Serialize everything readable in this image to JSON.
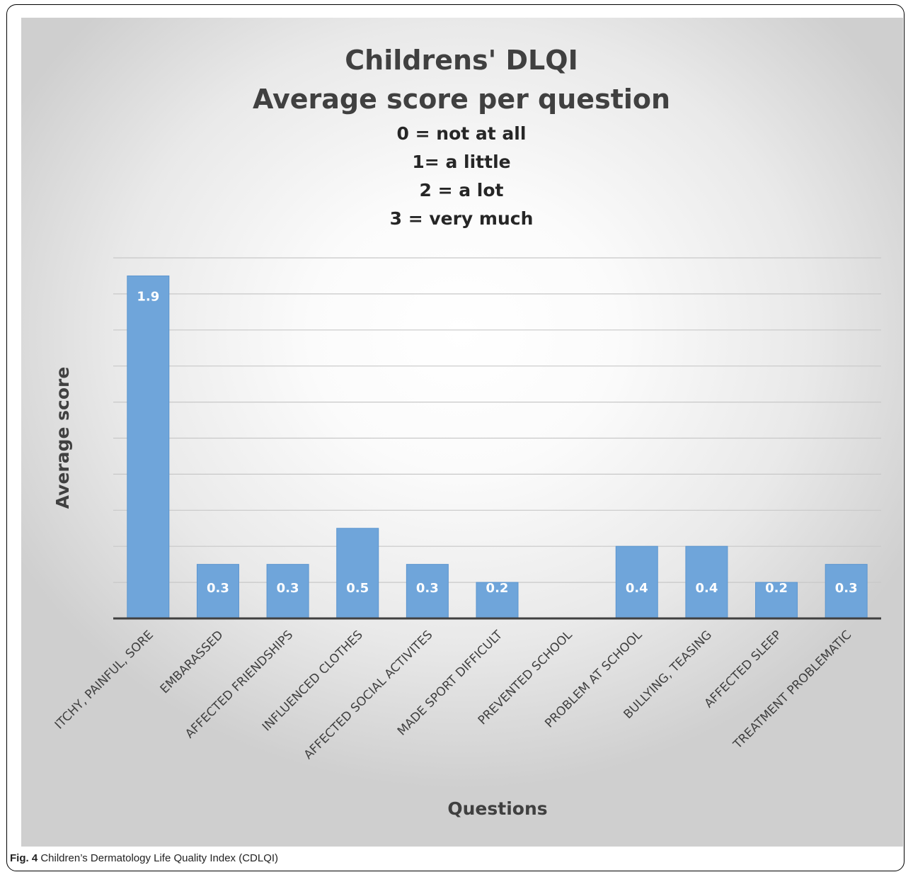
{
  "caption": {
    "label": "Fig. 4",
    "text": "Children’s Dermatology Life Quality Index (CDLQI)"
  },
  "colors": {
    "bar": "#6fa5da",
    "bar_stroke": "#5b95cf",
    "grid": "#c8c8c8",
    "baseline": "#404040"
  },
  "chart_data": {
    "type": "bar",
    "title_lines": [
      "Childrens' DLQI",
      "Average score per question"
    ],
    "subtitle_lines": [
      "0 = not at all",
      "1= a little",
      "2 = a lot",
      "3 = very much"
    ],
    "xlabel": "Questions",
    "ylabel": "Average score",
    "ylim": [
      0,
      2
    ],
    "grid": true,
    "gridline_step": 0.2,
    "categories": [
      "ITCHY, PAINFUL, SORE",
      "EMBARASSED",
      "AFFECTED FRIENDSHIPS",
      "INFLUENCED CLOTHES",
      "AFFECTED SOCIAL ACTIVITES",
      "MADE SPORT DIFFICULT",
      "PREVENTED SCHOOL",
      "PROBLEM AT SCHOOL",
      "BULLYING, TEASING",
      "AFFECTED SLEEP",
      "TREATMENT PROBLEMATIC"
    ],
    "values": [
      1.9,
      0.3,
      0.3,
      0.5,
      0.3,
      0.2,
      0,
      0.4,
      0.4,
      0.2,
      0.3
    ],
    "value_labels": [
      "1.9",
      "0.3",
      "0.3",
      "0.5",
      "0.3",
      "0.2",
      "",
      "0.4",
      "0.4",
      "0.2",
      "0.3"
    ]
  }
}
